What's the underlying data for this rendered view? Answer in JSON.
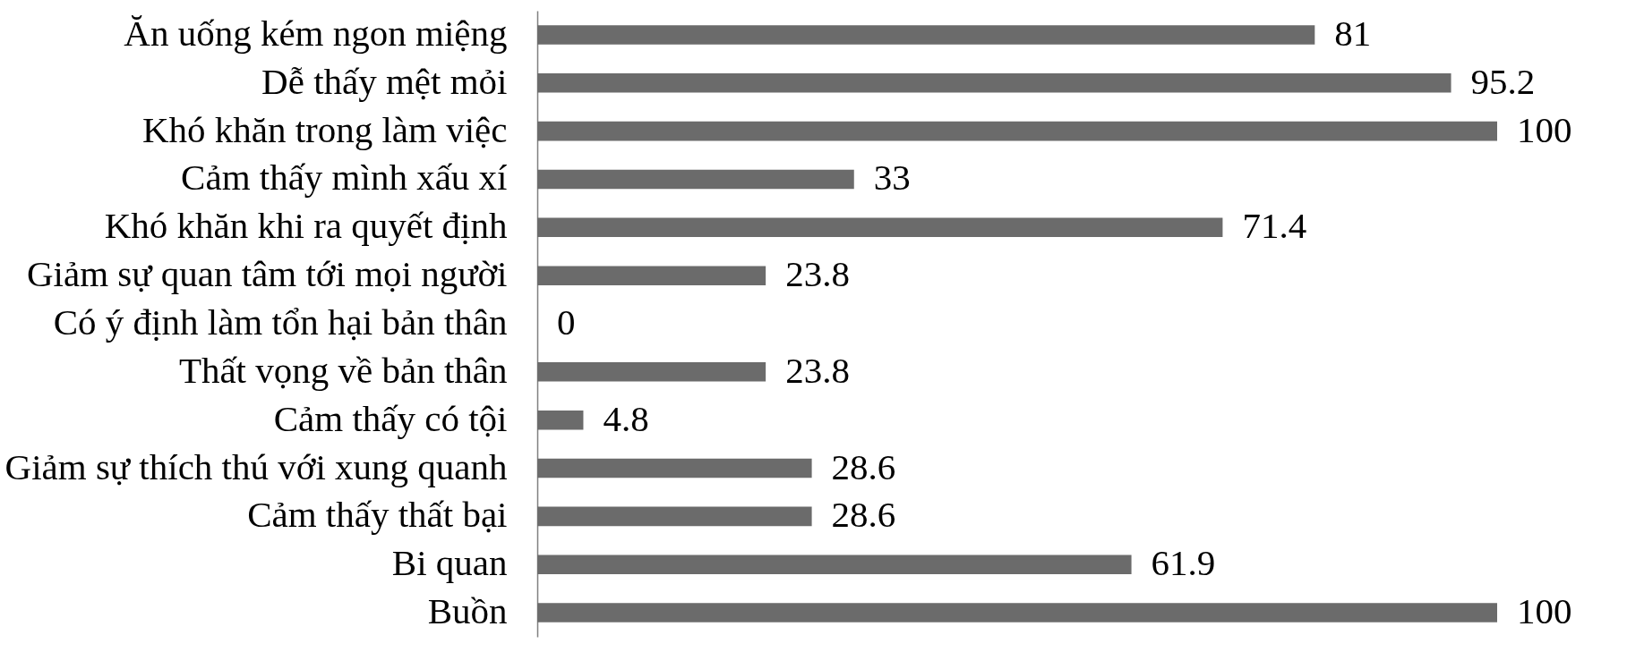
{
  "chart_data": {
    "type": "bar",
    "orientation": "horizontal",
    "categories": [
      "Ăn uống kém ngon miệng",
      "Dễ thấy mệt mỏi",
      "Khó khăn trong làm việc",
      "Cảm thấy mình xấu xí",
      "Khó khăn khi ra quyết định",
      "Giảm sự quan tâm tới mọi người",
      "Có ý định làm tổn hại bản thân",
      "Thất vọng về bản thân",
      "Cảm thấy có tội",
      "Giảm sự thích thú với xung quanh",
      "Cảm thấy thất bại",
      "Bi quan",
      "Buồn"
    ],
    "values": [
      81,
      95.2,
      100,
      33,
      71.4,
      23.8,
      0,
      23.8,
      4.8,
      28.6,
      28.6,
      61.9,
      100
    ],
    "color": "#6b6b6b",
    "data_labels": true,
    "tick_labels": "y"
  }
}
